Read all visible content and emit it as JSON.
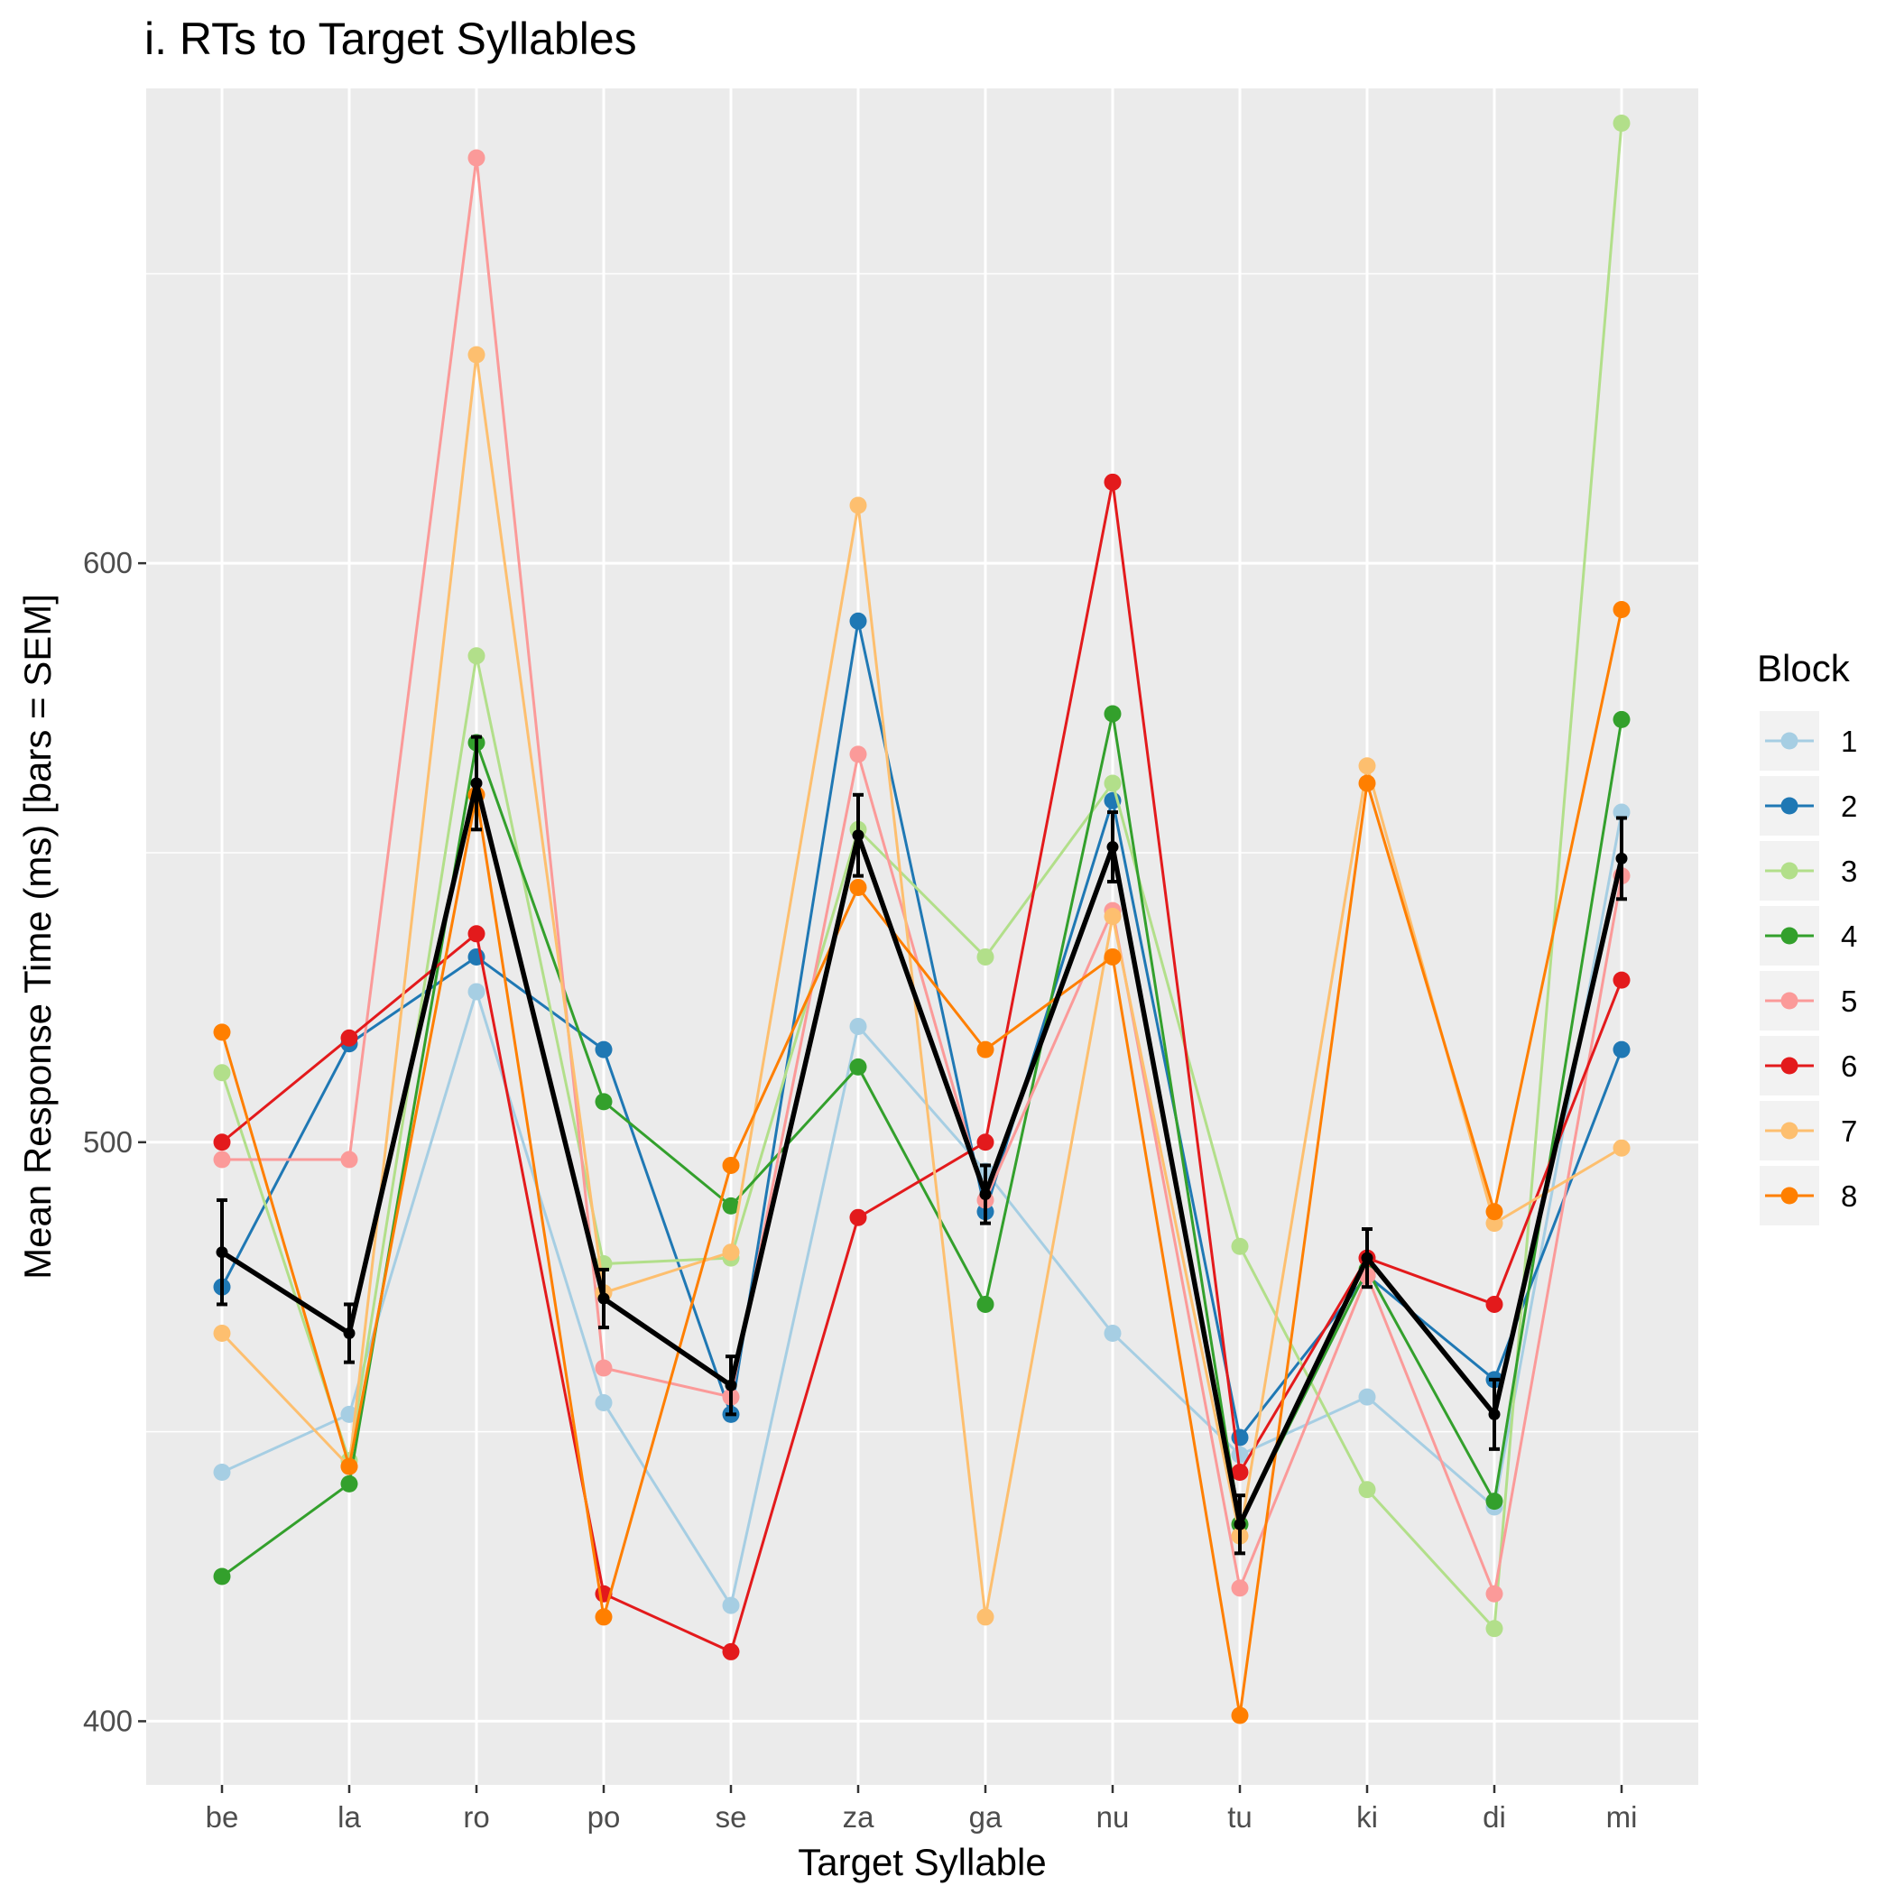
{
  "chart_data": {
    "type": "line",
    "title": "i. RTs to Target Syllables",
    "xlabel": "Target Syllable",
    "ylabel": "Mean Response Time (ms) [bars = SEM]",
    "categories": [
      "be",
      "la",
      "ro",
      "po",
      "se",
      "za",
      "ga",
      "nu",
      "tu",
      "ki",
      "di",
      "mi"
    ],
    "ylim": [
      389,
      682
    ],
    "yticks": [
      400,
      500,
      600
    ],
    "grid": true,
    "legend": {
      "title": "Block",
      "position": "right"
    },
    "series": [
      {
        "name": "1",
        "color": "#a6cee3",
        "values": [
          443,
          453,
          526,
          455,
          420,
          520,
          495,
          467,
          446,
          456,
          437,
          557
        ]
      },
      {
        "name": "2",
        "color": "#1f78b4",
        "values": [
          475,
          517,
          532,
          516,
          453,
          590,
          488,
          559,
          449,
          477,
          459,
          516
        ]
      },
      {
        "name": "3",
        "color": "#b2df8a",
        "values": [
          512,
          445,
          584,
          479,
          480,
          554,
          532,
          562,
          482,
          440,
          416,
          676
        ]
      },
      {
        "name": "4",
        "color": "#33a02c",
        "values": [
          425,
          441,
          569,
          507,
          489,
          513,
          472,
          574,
          434,
          478,
          438,
          573
        ]
      },
      {
        "name": "5",
        "color": "#fb9a99",
        "values": [
          497,
          497,
          670,
          461,
          456,
          567,
          490,
          540,
          423,
          477,
          422,
          546
        ]
      },
      {
        "name": "6",
        "color": "#e31a1c",
        "values": [
          500,
          518,
          536,
          422,
          412,
          487,
          500,
          614,
          443,
          480,
          472,
          528
        ]
      },
      {
        "name": "7",
        "color": "#fdbf6f",
        "values": [
          467,
          444,
          636,
          474,
          481,
          610,
          418,
          539,
          432,
          565,
          486,
          499
        ]
      },
      {
        "name": "8",
        "color": "#ff7f00",
        "values": [
          519,
          444,
          560,
          418,
          496,
          544,
          516,
          532,
          401,
          562,
          488,
          592
        ]
      }
    ],
    "mean": {
      "color": "#000000",
      "values": [
        481,
        467,
        562,
        473,
        458,
        553,
        491,
        551,
        434,
        480,
        453,
        549
      ],
      "sem": [
        9,
        5,
        8,
        5,
        5,
        7,
        5,
        6,
        5,
        5,
        6,
        7
      ]
    }
  }
}
